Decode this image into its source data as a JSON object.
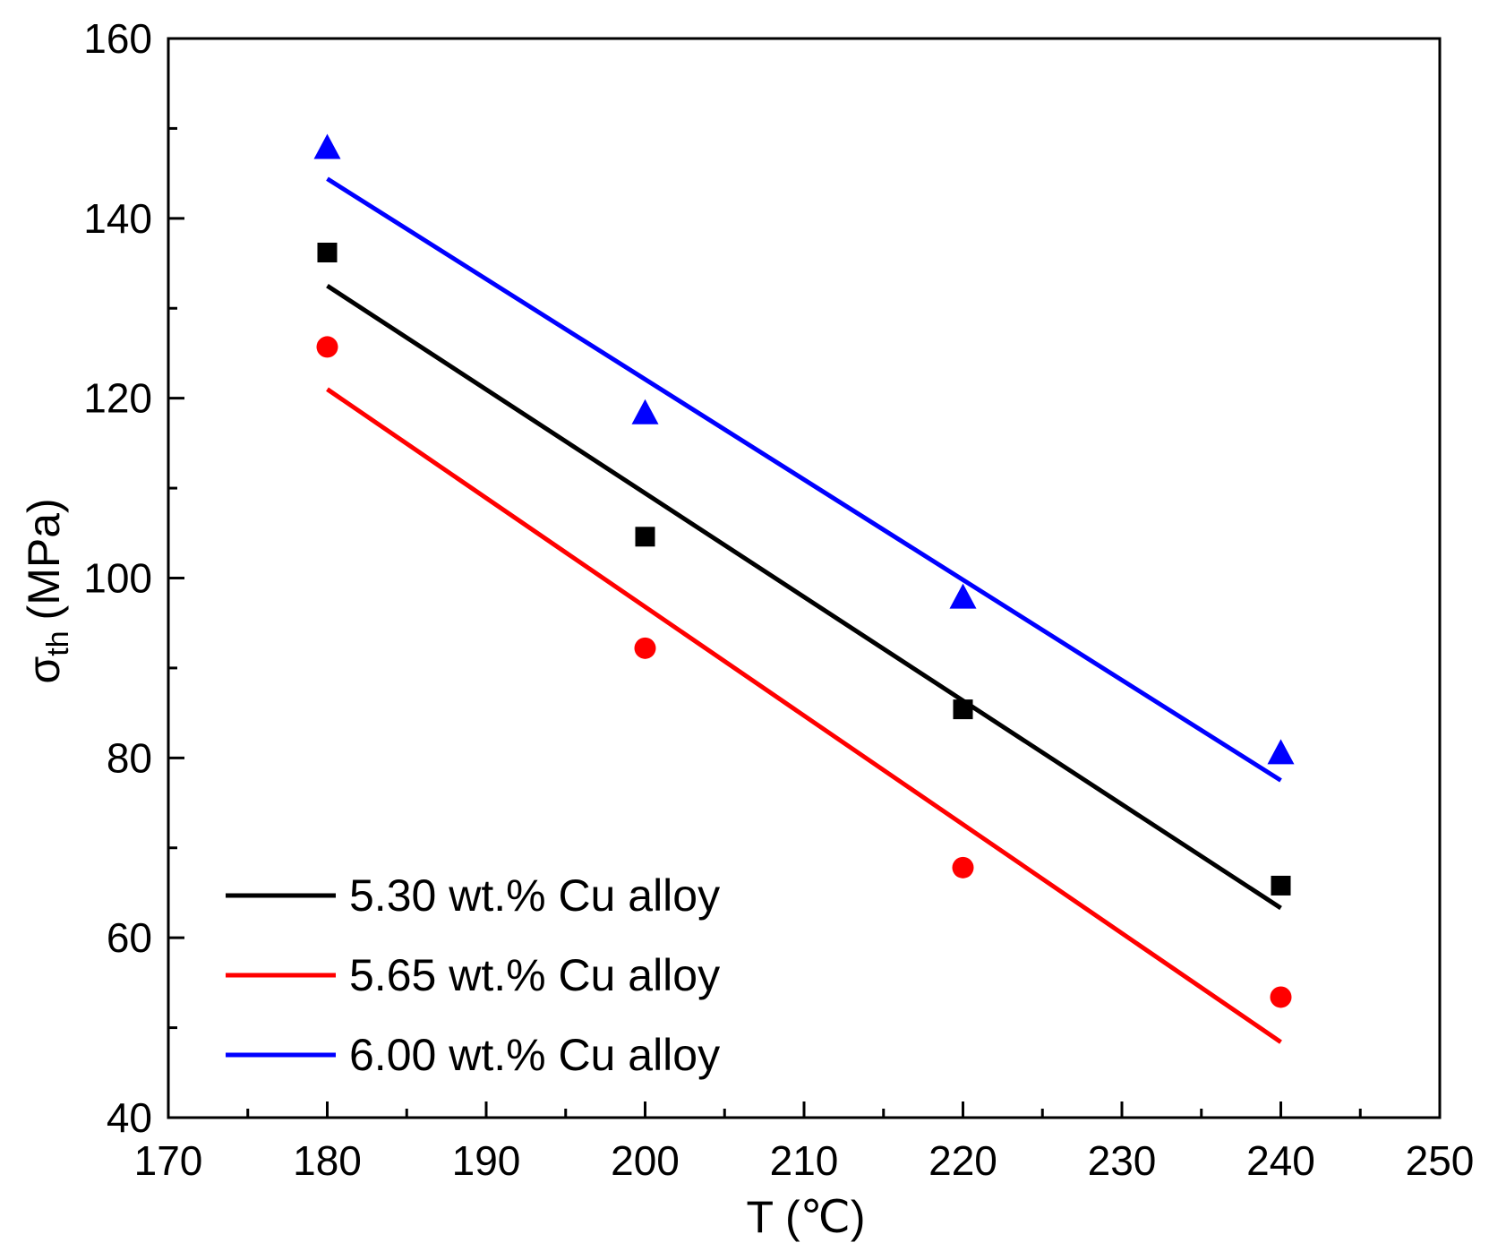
{
  "chart_data": {
    "type": "scatter",
    "xlabel": "T (℃)",
    "ylabel_main": "σ",
    "ylabel_sub": "th",
    "ylabel_unit": "(MPa)",
    "xlim": [
      170,
      250
    ],
    "ylim": [
      40,
      160
    ],
    "xticks": [
      170,
      180,
      190,
      200,
      210,
      220,
      230,
      240,
      250
    ],
    "yticks": [
      40,
      60,
      80,
      100,
      120,
      140,
      160
    ],
    "xtick_labels": [
      "170",
      "180",
      "190",
      "200",
      "210",
      "220",
      "230",
      "240",
      "250"
    ],
    "ytick_labels": [
      "40",
      "60",
      "80",
      "100",
      "120",
      "140",
      "160"
    ],
    "xminor": [
      175,
      185,
      195,
      205,
      215,
      225,
      235,
      245
    ],
    "yminor": [
      50,
      70,
      90,
      110,
      130,
      150
    ],
    "grid": false,
    "legend_position": "bottom-left",
    "series": [
      {
        "name": "5.30 wt.% Cu alloy",
        "color": "#000000",
        "marker": "square",
        "x": [
          180,
          200,
          220,
          240
        ],
        "y": [
          136.2,
          104.6,
          85.4,
          65.8
        ],
        "fit": {
          "x": [
            180,
            240
          ],
          "y": [
            132.5,
            63.3
          ]
        }
      },
      {
        "name": "5.65 wt.% Cu alloy",
        "color": "#ff0000",
        "marker": "circle",
        "x": [
          180,
          200,
          220,
          240
        ],
        "y": [
          125.7,
          92.2,
          67.8,
          53.4
        ],
        "fit": {
          "x": [
            180,
            240
          ],
          "y": [
            121.0,
            48.4
          ]
        }
      },
      {
        "name": "6.00 wt.% Cu alloy",
        "color": "#0000ff",
        "marker": "triangle",
        "x": [
          180,
          200,
          220,
          240
        ],
        "y": [
          147.8,
          118.3,
          97.8,
          80.5
        ],
        "fit": {
          "x": [
            180,
            240
          ],
          "y": [
            144.4,
            77.5
          ]
        }
      }
    ]
  }
}
